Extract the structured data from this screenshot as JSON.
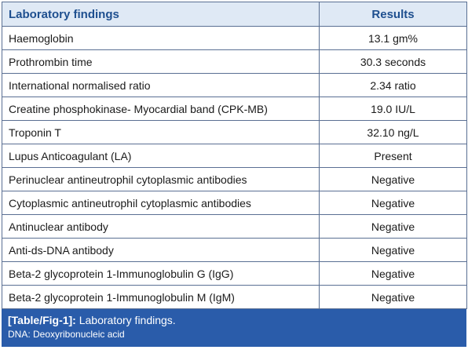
{
  "table": {
    "headers": [
      "Laboratory findings",
      "Results"
    ],
    "rows": [
      [
        "Haemoglobin",
        "13.1 gm%"
      ],
      [
        "Prothrombin time",
        "30.3 seconds"
      ],
      [
        "International normalised ratio",
        "2.34 ratio"
      ],
      [
        "Creatine phosphokinase- Myocardial band (CPK-MB)",
        "19.0 IU/L"
      ],
      [
        "Troponin T",
        "32.10 ng/L"
      ],
      [
        "Lupus Anticoagulant (LA)",
        "Present"
      ],
      [
        "Perinuclear antineutrophil cytoplasmic antibodies",
        "Negative"
      ],
      [
        "Cytoplasmic antineutrophil cytoplasmic antibodies",
        "Negative"
      ],
      [
        "Antinuclear antibody",
        "Negative"
      ],
      [
        "Anti-ds-DNA antibody",
        "Negative"
      ],
      [
        "Beta-2 glycoprotein 1-Immunoglobulin G (IgG)",
        "Negative"
      ],
      [
        "Beta-2 glycoprotein 1-Immunoglobulin M (IgM)",
        "Negative"
      ]
    ]
  },
  "caption": {
    "label": "[Table/Fig-1]:",
    "title": "Laboratory findings.",
    "footnote": "DNA: Deoxyribonucleic acid"
  },
  "colors": {
    "header_bg": "#dfe9f5",
    "header_text": "#1e4f8f",
    "caption_bg": "#2a5caa",
    "border": "#5a6f93"
  }
}
